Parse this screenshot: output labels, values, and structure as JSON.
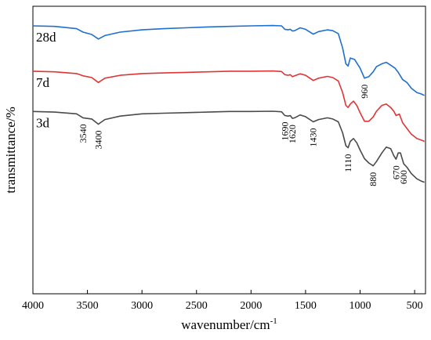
{
  "chart_data": {
    "type": "line",
    "title": "",
    "xlabel": "wavenumber/cm",
    "xlabel_superscript": "-1",
    "ylabel": "transmittance/%",
    "xlim": [
      4000,
      400
    ],
    "x_reversed": true,
    "yticks_shown": false,
    "grid": false,
    "xticks": [
      {
        "value": 4000,
        "label": "4000"
      },
      {
        "value": 3500,
        "label": "3500"
      },
      {
        "value": 3000,
        "label": "3000"
      },
      {
        "value": 2500,
        "label": "2500"
      },
      {
        "value": 2000,
        "label": "2000"
      },
      {
        "value": 1500,
        "label": "1500"
      },
      {
        "value": 1000,
        "label": "1000"
      },
      {
        "value": 500,
        "label": "500"
      }
    ],
    "series": [
      {
        "name": "28d",
        "color": "#1f6fcc",
        "points": [
          [
            4000,
            0.932
          ],
          [
            3800,
            0.93
          ],
          [
            3600,
            0.922
          ],
          [
            3540,
            0.91
          ],
          [
            3460,
            0.902
          ],
          [
            3400,
            0.886
          ],
          [
            3340,
            0.898
          ],
          [
            3200,
            0.91
          ],
          [
            3000,
            0.918
          ],
          [
            2800,
            0.922
          ],
          [
            2600,
            0.925
          ],
          [
            2400,
            0.928
          ],
          [
            2200,
            0.93
          ],
          [
            2000,
            0.932
          ],
          [
            1800,
            0.933
          ],
          [
            1720,
            0.932
          ],
          [
            1690,
            0.92
          ],
          [
            1660,
            0.918
          ],
          [
            1640,
            0.92
          ],
          [
            1620,
            0.914
          ],
          [
            1600,
            0.915
          ],
          [
            1550,
            0.925
          ],
          [
            1500,
            0.92
          ],
          [
            1430,
            0.903
          ],
          [
            1380,
            0.912
          ],
          [
            1300,
            0.918
          ],
          [
            1250,
            0.915
          ],
          [
            1200,
            0.905
          ],
          [
            1160,
            0.855
          ],
          [
            1130,
            0.8
          ],
          [
            1110,
            0.792
          ],
          [
            1090,
            0.82
          ],
          [
            1050,
            0.815
          ],
          [
            1000,
            0.785
          ],
          [
            960,
            0.75
          ],
          [
            920,
            0.755
          ],
          [
            880,
            0.772
          ],
          [
            850,
            0.79
          ],
          [
            800,
            0.8
          ],
          [
            760,
            0.805
          ],
          [
            720,
            0.795
          ],
          [
            680,
            0.785
          ],
          [
            650,
            0.77
          ],
          [
            610,
            0.745
          ],
          [
            570,
            0.735
          ],
          [
            530,
            0.715
          ],
          [
            480,
            0.7
          ],
          [
            440,
            0.695
          ],
          [
            410,
            0.69
          ]
        ]
      },
      {
        "name": "7d",
        "color": "#e03535",
        "points": [
          [
            4000,
            0.774
          ],
          [
            3800,
            0.772
          ],
          [
            3600,
            0.766
          ],
          [
            3540,
            0.758
          ],
          [
            3460,
            0.752
          ],
          [
            3400,
            0.735
          ],
          [
            3340,
            0.75
          ],
          [
            3200,
            0.76
          ],
          [
            3000,
            0.766
          ],
          [
            2800,
            0.768
          ],
          [
            2600,
            0.77
          ],
          [
            2400,
            0.772
          ],
          [
            2200,
            0.774
          ],
          [
            2000,
            0.774
          ],
          [
            1800,
            0.775
          ],
          [
            1720,
            0.773
          ],
          [
            1690,
            0.762
          ],
          [
            1660,
            0.76
          ],
          [
            1640,
            0.762
          ],
          [
            1620,
            0.755
          ],
          [
            1600,
            0.758
          ],
          [
            1550,
            0.765
          ],
          [
            1500,
            0.76
          ],
          [
            1430,
            0.742
          ],
          [
            1380,
            0.75
          ],
          [
            1300,
            0.756
          ],
          [
            1250,
            0.752
          ],
          [
            1200,
            0.74
          ],
          [
            1160,
            0.7
          ],
          [
            1130,
            0.655
          ],
          [
            1110,
            0.648
          ],
          [
            1090,
            0.66
          ],
          [
            1060,
            0.67
          ],
          [
            1030,
            0.655
          ],
          [
            1000,
            0.63
          ],
          [
            960,
            0.6
          ],
          [
            920,
            0.6
          ],
          [
            880,
            0.615
          ],
          [
            850,
            0.635
          ],
          [
            800,
            0.655
          ],
          [
            760,
            0.66
          ],
          [
            720,
            0.648
          ],
          [
            690,
            0.635
          ],
          [
            670,
            0.62
          ],
          [
            640,
            0.625
          ],
          [
            610,
            0.595
          ],
          [
            570,
            0.575
          ],
          [
            530,
            0.555
          ],
          [
            480,
            0.54
          ],
          [
            440,
            0.535
          ],
          [
            410,
            0.53
          ]
        ]
      },
      {
        "name": "3d",
        "color": "#4a4a4a",
        "points": [
          [
            4000,
            0.634
          ],
          [
            3800,
            0.632
          ],
          [
            3600,
            0.626
          ],
          [
            3540,
            0.612
          ],
          [
            3460,
            0.608
          ],
          [
            3400,
            0.59
          ],
          [
            3340,
            0.606
          ],
          [
            3200,
            0.618
          ],
          [
            3000,
            0.626
          ],
          [
            2800,
            0.628
          ],
          [
            2600,
            0.63
          ],
          [
            2400,
            0.632
          ],
          [
            2200,
            0.634
          ],
          [
            2000,
            0.634
          ],
          [
            1800,
            0.635
          ],
          [
            1720,
            0.633
          ],
          [
            1690,
            0.62
          ],
          [
            1660,
            0.618
          ],
          [
            1640,
            0.62
          ],
          [
            1620,
            0.61
          ],
          [
            1600,
            0.612
          ],
          [
            1550,
            0.622
          ],
          [
            1500,
            0.616
          ],
          [
            1430,
            0.598
          ],
          [
            1380,
            0.606
          ],
          [
            1300,
            0.612
          ],
          [
            1250,
            0.608
          ],
          [
            1200,
            0.598
          ],
          [
            1160,
            0.56
          ],
          [
            1130,
            0.515
          ],
          [
            1110,
            0.508
          ],
          [
            1090,
            0.53
          ],
          [
            1060,
            0.54
          ],
          [
            1030,
            0.525
          ],
          [
            1000,
            0.5
          ],
          [
            960,
            0.47
          ],
          [
            920,
            0.455
          ],
          [
            880,
            0.445
          ],
          [
            850,
            0.46
          ],
          [
            800,
            0.49
          ],
          [
            760,
            0.51
          ],
          [
            720,
            0.505
          ],
          [
            690,
            0.48
          ],
          [
            670,
            0.468
          ],
          [
            650,
            0.49
          ],
          [
            630,
            0.49
          ],
          [
            600,
            0.452
          ],
          [
            570,
            0.44
          ],
          [
            530,
            0.418
          ],
          [
            480,
            0.4
          ],
          [
            440,
            0.392
          ],
          [
            410,
            0.388
          ]
        ]
      }
    ],
    "annotations": [
      {
        "text": "3540",
        "x": 3540,
        "series": "3d"
      },
      {
        "text": "3400",
        "x": 3400,
        "series": "3d"
      },
      {
        "text": "1690",
        "x": 1690,
        "series": "3d"
      },
      {
        "text": "1620",
        "x": 1620,
        "series": "3d"
      },
      {
        "text": "1430",
        "x": 1430,
        "series": "3d"
      },
      {
        "text": "1110",
        "x": 1110,
        "series": "3d"
      },
      {
        "text": "880",
        "x": 880,
        "series": "3d"
      },
      {
        "text": "670",
        "x": 670,
        "series": "3d"
      },
      {
        "text": "600",
        "x": 600,
        "series": "3d"
      },
      {
        "text": "960",
        "x": 960,
        "series": "28d"
      }
    ]
  }
}
